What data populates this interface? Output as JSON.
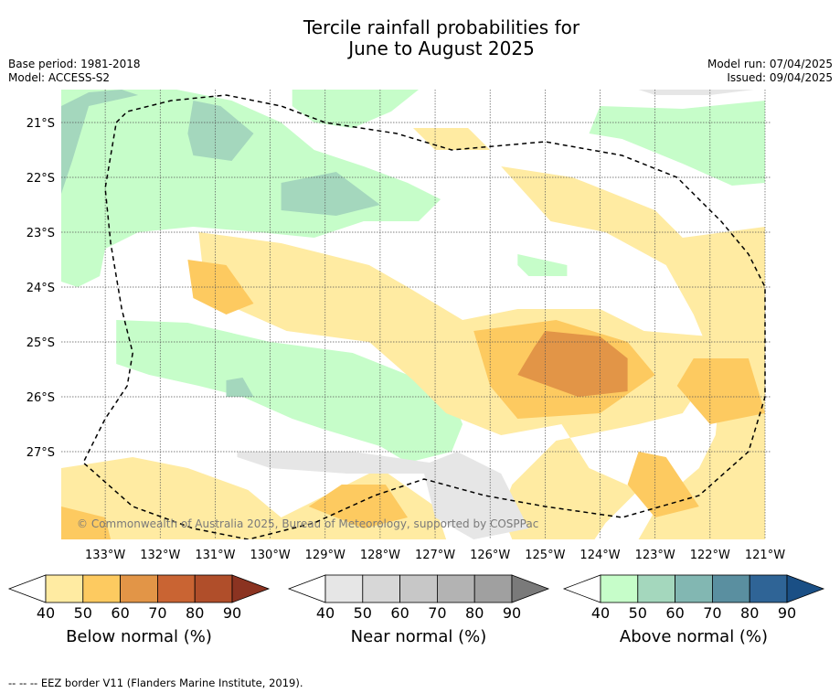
{
  "title_line1": "Tercile rainfall probabilities for",
  "title_line2": "June to August 2025",
  "meta_left": [
    "Base period: 1981-2018",
    "Model: ACCESS-S2"
  ],
  "meta_right": [
    "Model run: 07/04/2025",
    "Issued: 09/04/2025"
  ],
  "copyright": "© Commonwealth of Australia 2025, Bureau of Meteorology, supported by COSPPac",
  "footer": "--  --  -- EEZ border V11 (Flanders Marine Institute, 2019).",
  "chart_data": {
    "type": "heatmap",
    "x_axis": {
      "min": -133.8,
      "max": -120.9,
      "ticks": [
        -133,
        -132,
        -131,
        -130,
        -129,
        -128,
        -127,
        -126,
        -125,
        -124,
        -123,
        -122,
        -121
      ],
      "tick_labels": [
        "133°W",
        "132°W",
        "131°W",
        "130°W",
        "129°W",
        "128°W",
        "127°W",
        "126°W",
        "125°W",
        "124°W",
        "123°W",
        "122°W",
        "121°W"
      ]
    },
    "y_axis": {
      "min": -28.6,
      "max": -20.4,
      "ticks": [
        -21,
        -22,
        -23,
        -24,
        -25,
        -26,
        -27
      ],
      "tick_labels": [
        "21°S",
        "22°S",
        "23°S",
        "24°S",
        "25°S",
        "26°S",
        "27°S"
      ]
    },
    "grid": true,
    "regions": [
      {
        "category": "above",
        "level": 40,
        "points": [
          [
            -133.8,
            -20.4
          ],
          [
            -131.7,
            -20.4
          ],
          [
            -130.7,
            -20.6
          ],
          [
            -129.8,
            -21
          ],
          [
            -129.2,
            -21.5
          ],
          [
            -128.3,
            -21.8
          ],
          [
            -127.5,
            -22.1
          ],
          [
            -126.9,
            -22.4
          ],
          [
            -127.3,
            -22.8
          ],
          [
            -128.3,
            -22.8
          ],
          [
            -129.2,
            -23.1
          ],
          [
            -130.2,
            -23.0
          ],
          [
            -131.4,
            -22.9
          ],
          [
            -132.4,
            -23.0
          ],
          [
            -133.0,
            -23.3
          ],
          [
            -133.1,
            -23.8
          ],
          [
            -133.5,
            -24.0
          ],
          [
            -133.8,
            -23.9
          ]
        ]
      },
      {
        "category": "above",
        "level": 40,
        "points": [
          [
            -129.6,
            -20.4
          ],
          [
            -127.3,
            -20.4
          ],
          [
            -127.8,
            -20.8
          ],
          [
            -128.5,
            -21.1
          ],
          [
            -129.2,
            -21.0
          ],
          [
            -129.6,
            -20.7
          ]
        ]
      },
      {
        "category": "above",
        "level": 40,
        "points": [
          [
            -124.0,
            -20.7
          ],
          [
            -122.5,
            -20.75
          ],
          [
            -121.0,
            -20.6
          ],
          [
            -121.0,
            -22.1
          ],
          [
            -121.6,
            -22.15
          ],
          [
            -122.5,
            -21.75
          ],
          [
            -123.6,
            -21.3
          ],
          [
            -124.2,
            -21.2
          ]
        ]
      },
      {
        "category": "above",
        "level": 40,
        "points": [
          [
            -132.8,
            -24.6
          ],
          [
            -131.5,
            -24.65
          ],
          [
            -130.0,
            -25.0
          ],
          [
            -128.5,
            -25.2
          ],
          [
            -127.5,
            -25.6
          ],
          [
            -126.7,
            -26.0
          ],
          [
            -126.5,
            -26.5
          ],
          [
            -126.7,
            -27.0
          ],
          [
            -127.5,
            -27.2
          ],
          [
            -128.0,
            -26.9
          ],
          [
            -129.0,
            -26.6
          ],
          [
            -129.6,
            -26.4
          ],
          [
            -130.5,
            -26.0
          ],
          [
            -131.3,
            -25.8
          ],
          [
            -132.2,
            -25.6
          ],
          [
            -132.8,
            -25.4
          ]
        ]
      },
      {
        "category": "above",
        "level": 40,
        "points": [
          [
            -125.5,
            -23.4
          ],
          [
            -124.6,
            -23.6
          ],
          [
            -124.6,
            -23.8
          ],
          [
            -125.3,
            -23.8
          ],
          [
            -125.5,
            -23.6
          ]
        ]
      },
      {
        "category": "above",
        "level": 50,
        "points": [
          [
            -133.8,
            -20.7
          ],
          [
            -133.3,
            -20.45
          ],
          [
            -132.7,
            -20.4
          ],
          [
            -132.4,
            -20.5
          ],
          [
            -133.3,
            -20.7
          ],
          [
            -133.6,
            -21.7
          ],
          [
            -133.8,
            -22.3
          ]
        ]
      },
      {
        "category": "above",
        "level": 50,
        "points": [
          [
            -131.4,
            -20.6
          ],
          [
            -130.9,
            -20.7
          ],
          [
            -130.3,
            -21.2
          ],
          [
            -130.7,
            -21.7
          ],
          [
            -131.4,
            -21.6
          ],
          [
            -131.5,
            -21.2
          ]
        ]
      },
      {
        "category": "above",
        "level": 50,
        "points": [
          [
            -129.8,
            -22.1
          ],
          [
            -128.8,
            -21.9
          ],
          [
            -128.0,
            -22.5
          ],
          [
            -128.8,
            -22.7
          ],
          [
            -129.8,
            -22.6
          ]
        ]
      },
      {
        "category": "above",
        "level": 50,
        "points": [
          [
            -130.8,
            -25.7
          ],
          [
            -130.5,
            -25.65
          ],
          [
            -130.3,
            -26.0
          ],
          [
            -130.8,
            -26.0
          ]
        ]
      },
      {
        "category": "below",
        "level": 40,
        "points": [
          [
            -131.3,
            -23.0
          ],
          [
            -129.8,
            -23.2
          ],
          [
            -128.2,
            -23.6
          ],
          [
            -127.5,
            -24.0
          ],
          [
            -126.5,
            -24.6
          ],
          [
            -125.5,
            -24.4
          ],
          [
            -124.0,
            -24.4
          ],
          [
            -123.2,
            -24.8
          ],
          [
            -122.0,
            -24.9
          ],
          [
            -121.6,
            -25.2
          ],
          [
            -122.3,
            -26.0
          ],
          [
            -122.5,
            -26.3
          ],
          [
            -123.3,
            -26.5
          ],
          [
            -124.8,
            -26.8
          ],
          [
            -125.6,
            -27.6
          ],
          [
            -125.8,
            -28.1
          ],
          [
            -125.6,
            -28.6
          ],
          [
            -124.1,
            -28.6
          ],
          [
            -123.9,
            -28.3
          ],
          [
            -123.3,
            -27.7
          ],
          [
            -124.2,
            -27.3
          ],
          [
            -124.7,
            -26.5
          ],
          [
            -125.8,
            -26.7
          ],
          [
            -126.8,
            -26.3
          ],
          [
            -127.4,
            -25.7
          ],
          [
            -128.2,
            -25.0
          ],
          [
            -129.7,
            -24.8
          ],
          [
            -130.6,
            -24.4
          ],
          [
            -131.2,
            -23.9
          ]
        ]
      },
      {
        "category": "below",
        "level": 40,
        "points": [
          [
            -127.4,
            -21.1
          ],
          [
            -126.4,
            -21.1
          ],
          [
            -126.0,
            -21.5
          ],
          [
            -127.0,
            -21.5
          ]
        ]
      },
      {
        "category": "below",
        "level": 40,
        "points": [
          [
            -125.8,
            -21.8
          ],
          [
            -124.5,
            -22.0
          ],
          [
            -123.0,
            -22.6
          ],
          [
            -122.5,
            -23.1
          ],
          [
            -121.0,
            -22.9
          ],
          [
            -121.0,
            -28.6
          ],
          [
            -123.3,
            -28.6
          ],
          [
            -122.9,
            -27.9
          ],
          [
            -122.2,
            -27.3
          ],
          [
            -121.9,
            -26.7
          ],
          [
            -121.8,
            -25.7
          ],
          [
            -122.3,
            -24.5
          ],
          [
            -122.8,
            -23.6
          ],
          [
            -123.9,
            -23.0
          ],
          [
            -124.9,
            -22.8
          ]
        ]
      },
      {
        "category": "below",
        "level": 40,
        "points": [
          [
            -133.8,
            -27.3
          ],
          [
            -132.5,
            -27.1
          ],
          [
            -131.5,
            -27.3
          ],
          [
            -130.4,
            -27.7
          ],
          [
            -129.8,
            -28.2
          ],
          [
            -128.0,
            -27.3
          ],
          [
            -127.0,
            -28.0
          ],
          [
            -126.8,
            -28.6
          ],
          [
            -133.8,
            -28.6
          ]
        ]
      },
      {
        "category": "below",
        "level": 50,
        "points": [
          [
            -131.5,
            -23.5
          ],
          [
            -130.8,
            -23.6
          ],
          [
            -130.3,
            -24.3
          ],
          [
            -130.8,
            -24.5
          ],
          [
            -131.4,
            -24.2
          ]
        ]
      },
      {
        "category": "below",
        "level": 50,
        "points": [
          [
            -126.3,
            -24.8
          ],
          [
            -124.8,
            -24.6
          ],
          [
            -123.5,
            -25.0
          ],
          [
            -123.0,
            -25.6
          ],
          [
            -124.0,
            -26.3
          ],
          [
            -125.5,
            -26.4
          ],
          [
            -126.0,
            -25.8
          ]
        ]
      },
      {
        "category": "below",
        "level": 50,
        "points": [
          [
            -122.3,
            -25.3
          ],
          [
            -121.3,
            -25.3
          ],
          [
            -121.0,
            -26.3
          ],
          [
            -122.0,
            -26.5
          ],
          [
            -122.6,
            -25.8
          ]
        ]
      },
      {
        "category": "below",
        "level": 50,
        "points": [
          [
            -123.3,
            -27.0
          ],
          [
            -122.8,
            -27.1
          ],
          [
            -122.2,
            -28.0
          ],
          [
            -123.0,
            -28.2
          ],
          [
            -123.5,
            -27.6
          ]
        ]
      },
      {
        "category": "below",
        "level": 50,
        "points": [
          [
            -128.7,
            -27.6
          ],
          [
            -127.9,
            -27.6
          ],
          [
            -127.5,
            -28.2
          ],
          [
            -128.3,
            -28.4
          ],
          [
            -129.3,
            -28.0
          ]
        ]
      },
      {
        "category": "below",
        "level": 50,
        "points": [
          [
            -133.8,
            -28.0
          ],
          [
            -133.0,
            -28.2
          ],
          [
            -132.9,
            -28.6
          ],
          [
            -133.8,
            -28.6
          ]
        ]
      },
      {
        "category": "below",
        "level": 60,
        "points": [
          [
            -125.0,
            -24.8
          ],
          [
            -124.0,
            -24.9
          ],
          [
            -123.5,
            -25.3
          ],
          [
            -123.5,
            -25.9
          ],
          [
            -124.4,
            -26.0
          ],
          [
            -125.5,
            -25.6
          ],
          [
            -125.2,
            -25.1
          ]
        ]
      },
      {
        "category": "near",
        "level": 40,
        "points": [
          [
            -130.6,
            -27.0
          ],
          [
            -128.5,
            -27.0
          ],
          [
            -127.1,
            -27.2
          ],
          [
            -126.6,
            -27.0
          ],
          [
            -125.8,
            -27.4
          ],
          [
            -125.3,
            -28.4
          ],
          [
            -126.3,
            -28.6
          ],
          [
            -127.0,
            -28.2
          ],
          [
            -127.2,
            -27.4
          ],
          [
            -128.6,
            -27.4
          ],
          [
            -130.0,
            -27.3
          ],
          [
            -130.6,
            -27.1
          ]
        ]
      },
      {
        "category": "near",
        "level": 40,
        "points": [
          [
            -123.3,
            -20.4
          ],
          [
            -121.2,
            -20.4
          ],
          [
            -122.0,
            -20.5
          ],
          [
            -123.0,
            -20.5
          ]
        ]
      }
    ],
    "eez_border": [
      [
        -132.8,
        -21.0
      ],
      [
        -132.6,
        -20.8
      ],
      [
        -131.8,
        -20.6
      ],
      [
        -130.8,
        -20.5
      ],
      [
        -129.8,
        -20.7
      ],
      [
        -129.0,
        -21.0
      ],
      [
        -127.7,
        -21.2
      ],
      [
        -126.7,
        -21.5
      ],
      [
        -125.0,
        -21.35
      ],
      [
        -123.6,
        -21.6
      ],
      [
        -122.6,
        -22.0
      ],
      [
        -121.8,
        -22.8
      ],
      [
        -121.3,
        -23.4
      ],
      [
        -121.0,
        -24.0
      ],
      [
        -121.0,
        -25.0
      ],
      [
        -121.0,
        -26.0
      ],
      [
        -121.3,
        -27.0
      ],
      [
        -122.2,
        -27.8
      ],
      [
        -123.6,
        -28.2
      ],
      [
        -125.0,
        -28.0
      ],
      [
        -126.1,
        -27.8
      ],
      [
        -127.2,
        -27.5
      ],
      [
        -128.1,
        -27.8
      ],
      [
        -129.2,
        -28.3
      ],
      [
        -130.4,
        -28.6
      ],
      [
        -131.4,
        -28.4
      ],
      [
        -132.5,
        -28.0
      ],
      [
        -133.4,
        -27.2
      ],
      [
        -133.0,
        -26.4
      ],
      [
        -132.6,
        -25.8
      ],
      [
        -132.5,
        -25.2
      ],
      [
        -132.7,
        -24.4
      ],
      [
        -132.9,
        -23.2
      ],
      [
        -133.0,
        -22.2
      ],
      [
        -132.8,
        -21.0
      ]
    ]
  },
  "colorbars": [
    {
      "label": "Below normal (%)",
      "ticks": [
        "40",
        "50",
        "60",
        "70",
        "80",
        "90"
      ],
      "colors": [
        "#ffeba2",
        "#fdca60",
        "#e29547",
        "#c96433",
        "#b04e2a",
        "#8b3321"
      ]
    },
    {
      "label": "Near normal (%)",
      "ticks": [
        "40",
        "50",
        "60",
        "70",
        "80",
        "90"
      ],
      "colors": [
        "#e6e6e6",
        "#d7d7d7",
        "#c7c7c7",
        "#b3b3b3",
        "#a0a0a0",
        "#7a7a7a"
      ]
    },
    {
      "label": "Above normal (%)",
      "ticks": [
        "40",
        "50",
        "60",
        "70",
        "80",
        "90"
      ],
      "colors": [
        "#c6fdc9",
        "#a4d7bd",
        "#82b7b2",
        "#5a8fa0",
        "#2f6496",
        "#1a4f85"
      ]
    }
  ]
}
